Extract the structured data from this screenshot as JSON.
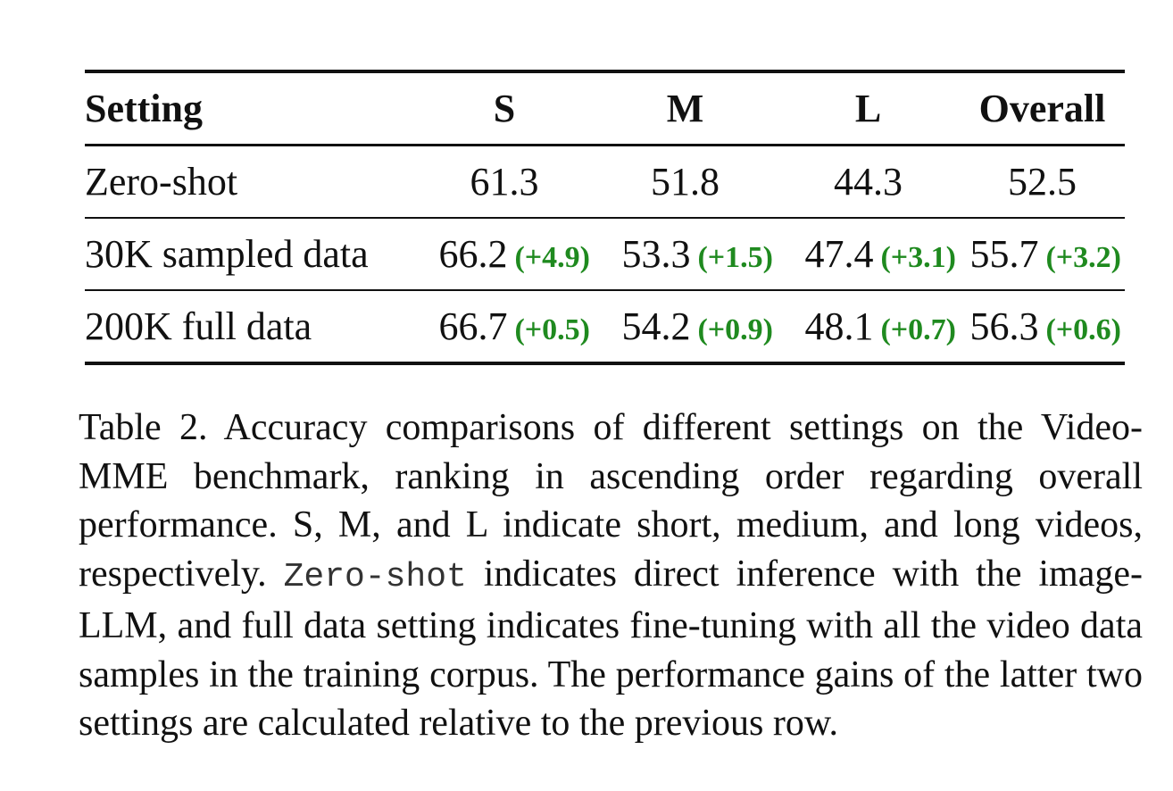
{
  "table": {
    "headers": [
      "Setting",
      "S",
      "M",
      "L",
      "Overall"
    ],
    "rows": [
      {
        "setting": "Zero-shot",
        "cells": [
          {
            "value": "61.3",
            "gain": ""
          },
          {
            "value": "51.8",
            "gain": ""
          },
          {
            "value": "44.3",
            "gain": ""
          },
          {
            "value": "52.5",
            "gain": ""
          }
        ]
      },
      {
        "setting": "30K sampled data",
        "cells": [
          {
            "value": "66.2",
            "gain": "(+4.9)"
          },
          {
            "value": "53.3",
            "gain": "(+1.5)"
          },
          {
            "value": "47.4",
            "gain": "(+3.1)"
          },
          {
            "value": "55.7",
            "gain": "(+3.2)"
          }
        ]
      },
      {
        "setting": "200K full data",
        "cells": [
          {
            "value": "66.7",
            "gain": "(+0.5)"
          },
          {
            "value": "54.2",
            "gain": "(+0.9)"
          },
          {
            "value": "48.1",
            "gain": "(+0.7)"
          },
          {
            "value": "56.3",
            "gain": "(+0.6)"
          }
        ]
      }
    ],
    "gain_color": "#1f8a1f"
  },
  "caption": {
    "part1": "Table 2. Accuracy comparisons of different settings on the Video-MME benchmark, ranking in ascending order regarding overall performance. S, M, and L indicate short, medium, and long videos, respectively. ",
    "code": "Zero-shot",
    "part2": " indicates direct inference with the image-LLM, and full data setting indicates fine-tuning with all the video data samples in the training corpus. The performance gains of the latter two settings are calculated relative to the previous row."
  }
}
